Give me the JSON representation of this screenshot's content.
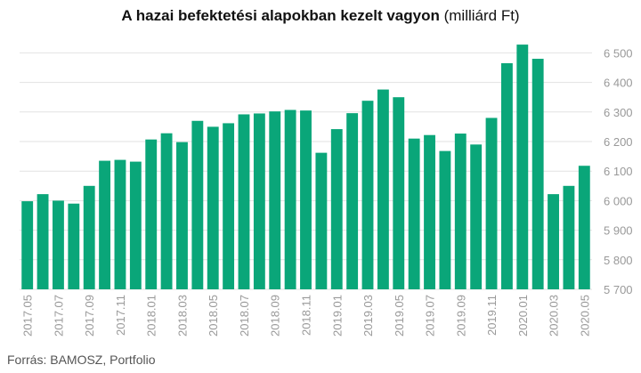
{
  "chart_data": {
    "type": "bar",
    "title": "A hazai befektetési alapokban kezelt vagyon",
    "title_unit": "(milliárd Ft)",
    "categories": [
      "2017.05",
      "2017.06",
      "2017.07",
      "2017.08",
      "2017.09",
      "2017.10",
      "2017.11",
      "2017.12",
      "2018.01",
      "2018.02",
      "2018.03",
      "2018.04",
      "2018.05",
      "2018.06",
      "2018.07",
      "2018.08",
      "2018.09",
      "2018.10",
      "2018.11",
      "2018.12",
      "2019.01",
      "2019.02",
      "2019.03",
      "2019.04",
      "2019.05",
      "2019.06",
      "2019.07",
      "2019.08",
      "2019.09",
      "2019.10",
      "2019.11",
      "2019.12",
      "2020.01",
      "2020.02",
      "2020.03",
      "2020.04",
      "2020.05"
    ],
    "x_tick_labels": [
      "2017.05",
      "2017.07",
      "2017.09",
      "2017.11",
      "2018.01",
      "2018.03",
      "2018.05",
      "2018.07",
      "2018.09",
      "2018.11",
      "2019.01",
      "2019.03",
      "2019.05",
      "2019.07",
      "2019.09",
      "2019.11",
      "2020.01",
      "2020.03",
      "2020.05"
    ],
    "values": [
      5998,
      6022,
      6000,
      5990,
      6050,
      6135,
      6138,
      6132,
      6207,
      6228,
      6198,
      6270,
      6250,
      6262,
      6292,
      6295,
      6302,
      6307,
      6305,
      6162,
      6242,
      6296,
      6338,
      6376,
      6350,
      6210,
      6222,
      6168,
      6227,
      6190,
      6280,
      6465,
      6528,
      6480,
      6022,
      6050,
      6118
    ],
    "ylim": [
      5700,
      6560
    ],
    "y_ticks": [
      5700,
      5800,
      5900,
      6000,
      6100,
      6200,
      6300,
      6400,
      6500
    ],
    "y_tick_labels": [
      "5 700",
      "5 800",
      "5 900",
      "6 000",
      "6 100",
      "6 200",
      "6 300",
      "6 400",
      "6 500"
    ],
    "y_axis_position": "right",
    "grid": true,
    "bar_color": "#0aa679"
  },
  "source": "Forrás: BAMOSZ, Portfolio"
}
